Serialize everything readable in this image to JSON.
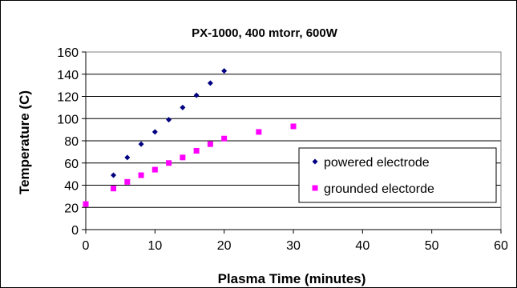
{
  "chart_data": {
    "type": "scatter",
    "title": "PX-1000, 400 mtorr, 600W",
    "xlabel": "Plasma Time (minutes)",
    "ylabel": "Temperature (C)",
    "xlim": [
      0,
      60
    ],
    "ylim": [
      0,
      160
    ],
    "x_ticks": [
      "0",
      "10",
      "20",
      "30",
      "40",
      "50",
      "60"
    ],
    "y_ticks": [
      "0",
      "20",
      "40",
      "60",
      "80",
      "100",
      "120",
      "140",
      "160"
    ],
    "grid": "horizontal",
    "legend_position": "right",
    "series": [
      {
        "name": "powered electrode",
        "marker": "diamond",
        "color": "#000080",
        "points": [
          [
            4,
            49
          ],
          [
            6,
            65
          ],
          [
            8,
            77
          ],
          [
            10,
            88
          ],
          [
            12,
            99
          ],
          [
            14,
            110
          ],
          [
            16,
            121
          ],
          [
            18,
            132
          ],
          [
            20,
            143
          ]
        ]
      },
      {
        "name": "grounded electorde",
        "marker": "square",
        "color": "#ff00ff",
        "points": [
          [
            0,
            23
          ],
          [
            4,
            37
          ],
          [
            6,
            43
          ],
          [
            8,
            49
          ],
          [
            10,
            54
          ],
          [
            12,
            60
          ],
          [
            14,
            65
          ],
          [
            16,
            71
          ],
          [
            18,
            77
          ],
          [
            20,
            82
          ],
          [
            25,
            88
          ],
          [
            30,
            93
          ]
        ]
      }
    ]
  }
}
